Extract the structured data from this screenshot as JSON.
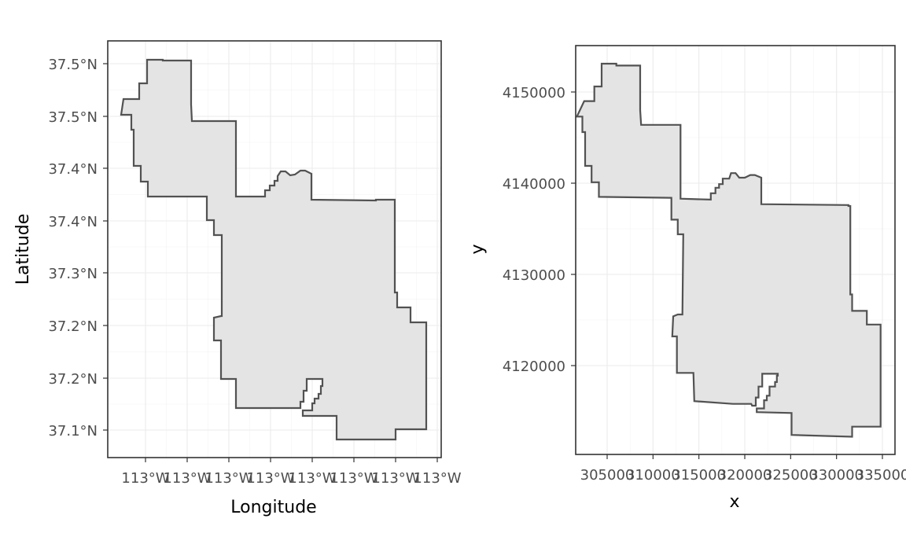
{
  "chart_data": [
    {
      "type": "map",
      "coordinate_system": "longitude/latitude (degrees)",
      "xlabel": "Longitude",
      "ylabel": "Latitude",
      "x_tick_labels": [
        "113°W",
        "113°W",
        "113°W",
        "113°W",
        "113°W",
        "113°W",
        "113°W",
        "113°W"
      ],
      "y_tick_labels": [
        "37.1°N",
        "37.2°N",
        "37.2°N",
        "37.3°N",
        "37.4°N",
        "37.4°N",
        "37.5°N",
        "37.5°N"
      ],
      "grid": true,
      "fill_color": "#e4e4e4",
      "outline_color": "#525252"
    },
    {
      "type": "map",
      "coordinate_system": "projected (x, y)",
      "xlabel": "x",
      "ylabel": "y",
      "x_ticks": [
        305000,
        310000,
        315000,
        320000,
        325000,
        330000,
        335000
      ],
      "x_tick_labels": [
        "305000",
        "310000",
        "315000",
        "320000",
        "325000",
        "330000",
        "335000"
      ],
      "y_ticks": [
        4120000,
        4130000,
        4140000,
        4150000
      ],
      "y_tick_labels": [
        "4120000",
        "4130000",
        "4140000",
        "4150000"
      ],
      "grid": true,
      "outline": [
        [
          301700,
          4147300
        ],
        [
          302500,
          4149000
        ],
        [
          303600,
          4149000
        ],
        [
          303600,
          4150600
        ],
        [
          304400,
          4150600
        ],
        [
          304400,
          4153100
        ],
        [
          306000,
          4153100
        ],
        [
          306000,
          4152900
        ],
        [
          308600,
          4152900
        ],
        [
          308600,
          4148000
        ],
        [
          308700,
          4146400
        ],
        [
          313000,
          4146400
        ],
        [
          313000,
          4138300
        ],
        [
          316300,
          4138200
        ],
        [
          316300,
          4138900
        ],
        [
          316800,
          4138900
        ],
        [
          316800,
          4139500
        ],
        [
          317200,
          4139500
        ],
        [
          317200,
          4139900
        ],
        [
          317600,
          4139900
        ],
        [
          317600,
          4140500
        ],
        [
          318300,
          4140500
        ],
        [
          318500,
          4141100
        ],
        [
          319000,
          4141100
        ],
        [
          319400,
          4140600
        ],
        [
          320000,
          4140600
        ],
        [
          320600,
          4140900
        ],
        [
          321100,
          4140900
        ],
        [
          321800,
          4140600
        ],
        [
          321800,
          4137700
        ],
        [
          331300,
          4137600
        ],
        [
          331300,
          4137500
        ],
        [
          331500,
          4137500
        ],
        [
          331500,
          4127800
        ],
        [
          331700,
          4127800
        ],
        [
          331700,
          4126000
        ],
        [
          333300,
          4126000
        ],
        [
          333300,
          4124500
        ],
        [
          334800,
          4124500
        ],
        [
          334800,
          4113300
        ],
        [
          331700,
          4113300
        ],
        [
          331700,
          4112200
        ],
        [
          325100,
          4112400
        ],
        [
          325100,
          4114800
        ],
        [
          321300,
          4114900
        ],
        [
          321300,
          4115300
        ],
        [
          322100,
          4115300
        ],
        [
          322100,
          4116200
        ],
        [
          322400,
          4116200
        ],
        [
          322400,
          4116700
        ],
        [
          322700,
          4116700
        ],
        [
          322700,
          4117700
        ],
        [
          323300,
          4117700
        ],
        [
          323300,
          4118200
        ],
        [
          323500,
          4118200
        ],
        [
          323500,
          4118900
        ],
        [
          323600,
          4118900
        ],
        [
          323600,
          4119100
        ],
        [
          321900,
          4119100
        ],
        [
          321900,
          4117700
        ],
        [
          321500,
          4117700
        ],
        [
          321500,
          4116500
        ],
        [
          321200,
          4116500
        ],
        [
          321200,
          4115600
        ],
        [
          320800,
          4115600
        ],
        [
          320700,
          4115800
        ],
        [
          318700,
          4115800
        ],
        [
          314500,
          4116100
        ],
        [
          314400,
          4119200
        ],
        [
          312600,
          4119200
        ],
        [
          312600,
          4123200
        ],
        [
          312100,
          4123200
        ],
        [
          312200,
          4125400
        ],
        [
          312700,
          4125600
        ],
        [
          313200,
          4125600
        ],
        [
          313300,
          4134400
        ],
        [
          312700,
          4134400
        ],
        [
          312700,
          4136000
        ],
        [
          312000,
          4136000
        ],
        [
          312000,
          4138400
        ],
        [
          304100,
          4138500
        ],
        [
          304100,
          4140100
        ],
        [
          303300,
          4140100
        ],
        [
          303300,
          4141900
        ],
        [
          302600,
          4141900
        ],
        [
          302600,
          4145600
        ],
        [
          302300,
          4145600
        ],
        [
          302300,
          4147300
        ]
      ],
      "fill_color": "#e4e4e4",
      "outline_color": "#525252"
    }
  ]
}
